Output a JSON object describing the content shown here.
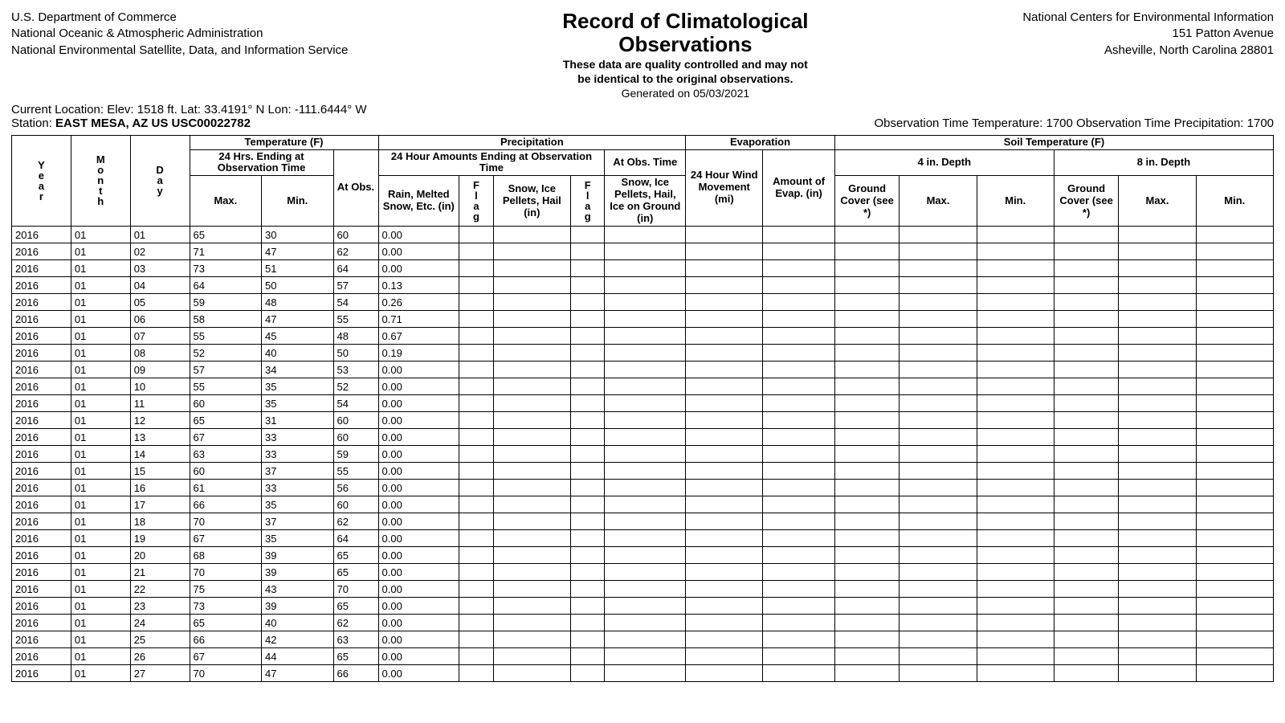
{
  "header": {
    "left_lines": [
      "U.S. Department of Commerce",
      "National Oceanic & Atmospheric Administration",
      "National Environmental Satellite, Data, and Information Service"
    ],
    "title_line1": "Record of Climatological",
    "title_line2": "Observations",
    "sub_line1": "These data are quality controlled and may not",
    "sub_line2": "be identical to the original observations.",
    "generated": "Generated on 05/03/2021",
    "right_lines": [
      "National Centers for Environmental Information",
      "151 Patton Avenue",
      "Asheville, North Carolina 28801"
    ],
    "location": "Current Location: Elev: 1518 ft. Lat: 33.4191° N Lon: -111.6444° W",
    "station_prefix": "Station: ",
    "station": "EAST MESA, AZ US USC00022782",
    "obs_times": "Observation Time Temperature: 1700 Observation Time Precipitation: 1700"
  },
  "table": {
    "groups": {
      "temp": "Temperature (F)",
      "precip": "Precipitation",
      "evap": "Evaporation",
      "soil": "Soil Temperature (F)",
      "hrs24": "24 Hrs. Ending at Observation Time",
      "amt24": "24 Hour Amounts Ending at Observation Time",
      "atobs": "At Obs. Time",
      "d4": "4 in. Depth",
      "d8": "8 in. Depth"
    },
    "cols": {
      "year": "Year",
      "month": "Month",
      "day": "Day",
      "max": "Max.",
      "min": "Min.",
      "atobs": "At Obs.",
      "rain": "Rain, Melted Snow, Etc. (in)",
      "flag": "Flag",
      "snow": "Snow, Ice Pellets, Hail (in)",
      "sog": "Snow, Ice Pellets, Hail, Ice on Ground (in)",
      "wind": "24 Hour Wind Movement (mi)",
      "evap": "Amount of Evap. (in)",
      "gcover": "Ground Cover (see *)"
    },
    "rows": [
      {
        "y": "2016",
        "m": "01",
        "d": "01",
        "max": "65",
        "min": "30",
        "obs": "60",
        "rain": "0.00"
      },
      {
        "y": "2016",
        "m": "01",
        "d": "02",
        "max": "71",
        "min": "47",
        "obs": "62",
        "rain": "0.00"
      },
      {
        "y": "2016",
        "m": "01",
        "d": "03",
        "max": "73",
        "min": "51",
        "obs": "64",
        "rain": "0.00"
      },
      {
        "y": "2016",
        "m": "01",
        "d": "04",
        "max": "64",
        "min": "50",
        "obs": "57",
        "rain": "0.13"
      },
      {
        "y": "2016",
        "m": "01",
        "d": "05",
        "max": "59",
        "min": "48",
        "obs": "54",
        "rain": "0.26"
      },
      {
        "y": "2016",
        "m": "01",
        "d": "06",
        "max": "58",
        "min": "47",
        "obs": "55",
        "rain": "0.71"
      },
      {
        "y": "2016",
        "m": "01",
        "d": "07",
        "max": "55",
        "min": "45",
        "obs": "48",
        "rain": "0.67"
      },
      {
        "y": "2016",
        "m": "01",
        "d": "08",
        "max": "52",
        "min": "40",
        "obs": "50",
        "rain": "0.19"
      },
      {
        "y": "2016",
        "m": "01",
        "d": "09",
        "max": "57",
        "min": "34",
        "obs": "53",
        "rain": "0.00"
      },
      {
        "y": "2016",
        "m": "01",
        "d": "10",
        "max": "55",
        "min": "35",
        "obs": "52",
        "rain": "0.00"
      },
      {
        "y": "2016",
        "m": "01",
        "d": "11",
        "max": "60",
        "min": "35",
        "obs": "54",
        "rain": "0.00"
      },
      {
        "y": "2016",
        "m": "01",
        "d": "12",
        "max": "65",
        "min": "31",
        "obs": "60",
        "rain": "0.00"
      },
      {
        "y": "2016",
        "m": "01",
        "d": "13",
        "max": "67",
        "min": "33",
        "obs": "60",
        "rain": "0.00"
      },
      {
        "y": "2016",
        "m": "01",
        "d": "14",
        "max": "63",
        "min": "33",
        "obs": "59",
        "rain": "0.00"
      },
      {
        "y": "2016",
        "m": "01",
        "d": "15",
        "max": "60",
        "min": "37",
        "obs": "55",
        "rain": "0.00"
      },
      {
        "y": "2016",
        "m": "01",
        "d": "16",
        "max": "61",
        "min": "33",
        "obs": "56",
        "rain": "0.00"
      },
      {
        "y": "2016",
        "m": "01",
        "d": "17",
        "max": "66",
        "min": "35",
        "obs": "60",
        "rain": "0.00"
      },
      {
        "y": "2016",
        "m": "01",
        "d": "18",
        "max": "70",
        "min": "37",
        "obs": "62",
        "rain": "0.00"
      },
      {
        "y": "2016",
        "m": "01",
        "d": "19",
        "max": "67",
        "min": "35",
        "obs": "64",
        "rain": "0.00"
      },
      {
        "y": "2016",
        "m": "01",
        "d": "20",
        "max": "68",
        "min": "39",
        "obs": "65",
        "rain": "0.00"
      },
      {
        "y": "2016",
        "m": "01",
        "d": "21",
        "max": "70",
        "min": "39",
        "obs": "65",
        "rain": "0.00"
      },
      {
        "y": "2016",
        "m": "01",
        "d": "22",
        "max": "75",
        "min": "43",
        "obs": "70",
        "rain": "0.00"
      },
      {
        "y": "2016",
        "m": "01",
        "d": "23",
        "max": "73",
        "min": "39",
        "obs": "65",
        "rain": "0.00"
      },
      {
        "y": "2016",
        "m": "01",
        "d": "24",
        "max": "65",
        "min": "40",
        "obs": "62",
        "rain": "0.00"
      },
      {
        "y": "2016",
        "m": "01",
        "d": "25",
        "max": "66",
        "min": "42",
        "obs": "63",
        "rain": "0.00"
      },
      {
        "y": "2016",
        "m": "01",
        "d": "26",
        "max": "67",
        "min": "44",
        "obs": "65",
        "rain": "0.00"
      },
      {
        "y": "2016",
        "m": "01",
        "d": "27",
        "max": "70",
        "min": "47",
        "obs": "66",
        "rain": "0.00"
      }
    ]
  }
}
